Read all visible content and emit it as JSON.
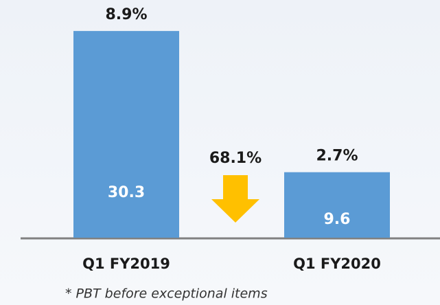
{
  "chart_data": {
    "type": "bar",
    "categories": [
      "Q1 FY2019",
      "Q1 FY2020"
    ],
    "values": [
      30.3,
      9.6
    ],
    "color": "#5b9bd5",
    "ylim": [
      0,
      35
    ],
    "margin_labels": [
      "8.9%",
      "2.7%"
    ],
    "annotation": "68.1%",
    "footnote": "* PBT before exceptional items"
  }
}
